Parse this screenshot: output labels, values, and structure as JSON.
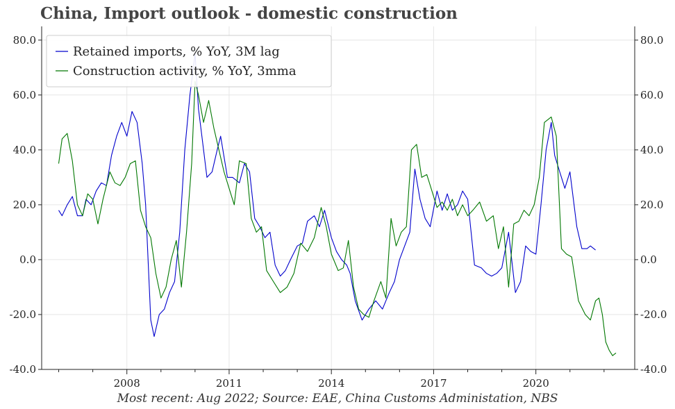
{
  "title": "China, Import outlook - domestic construction",
  "footer": "Most recent: Aug 2022; Source: EAE, China Customs Administation, NBS",
  "colors": {
    "series1": "#0000cc",
    "series2": "#007700",
    "grid": "#e6e6e6",
    "axis": "#222222"
  },
  "chart_data": {
    "type": "line",
    "title": "China, Import outlook - domestic construction",
    "ylim": [
      -40,
      85
    ],
    "xlim": [
      2005.5,
      2022.9
    ],
    "grid": true,
    "legend": "top-left",
    "x_ticks": [
      2008,
      2011,
      2014,
      2017,
      2020
    ],
    "x_tick_labels": [
      "2008",
      "2011",
      "2014",
      "2017",
      "2020"
    ],
    "y_ticks": [
      -40,
      -20,
      0,
      20,
      40,
      60,
      80
    ],
    "y_tick_labels": [
      "-40.0",
      "-20.0",
      "0.0",
      "20.0",
      "40.0",
      "60.0",
      "80.0"
    ],
    "series": [
      {
        "name": "Retained imports, % YoY, 3M lag",
        "color": "#0000cc",
        "x": [
          2006.0,
          2006.1,
          2006.25,
          2006.4,
          2006.55,
          2006.7,
          2006.8,
          2006.95,
          2007.1,
          2007.25,
          2007.4,
          2007.55,
          2007.7,
          2007.85,
          2008.0,
          2008.15,
          2008.3,
          2008.45,
          2008.55,
          2008.7,
          2008.8,
          2008.95,
          2009.1,
          2009.25,
          2009.4,
          2009.55,
          2009.7,
          2009.85,
          2010.0,
          2010.1,
          2010.2,
          2010.35,
          2010.5,
          2010.65,
          2010.75,
          2010.95,
          2011.1,
          2011.3,
          2011.45,
          2011.6,
          2011.75,
          2011.9,
          2012.05,
          2012.2,
          2012.35,
          2012.5,
          2012.65,
          2012.8,
          2013.0,
          2013.15,
          2013.3,
          2013.5,
          2013.65,
          2013.8,
          2014.0,
          2014.15,
          2014.3,
          2014.45,
          2014.55,
          2014.7,
          2014.9,
          2015.1,
          2015.3,
          2015.5,
          2015.7,
          2015.85,
          2016.0,
          2016.15,
          2016.3,
          2016.45,
          2016.6,
          2016.75,
          2016.9,
          2017.1,
          2017.25,
          2017.4,
          2017.55,
          2017.7,
          2017.85,
          2018.0,
          2018.2,
          2018.4,
          2018.55,
          2018.7,
          2018.85,
          2019.0,
          2019.2,
          2019.4,
          2019.55,
          2019.7,
          2019.85,
          2020.0,
          2020.15,
          2020.3,
          2020.45,
          2020.55,
          2020.7,
          2020.85,
          2021.0,
          2021.2,
          2021.35,
          2021.5,
          2021.6,
          2021.75
        ],
        "y": [
          18,
          16,
          20,
          23,
          16,
          16,
          22,
          20,
          25,
          28,
          27,
          38,
          45,
          50,
          45,
          54,
          50,
          35,
          20,
          -22,
          -28,
          -20,
          -18,
          -12,
          -8,
          10,
          40,
          60,
          75,
          55,
          45,
          30,
          32,
          40,
          45,
          30,
          30,
          28,
          35,
          32,
          15,
          12,
          8,
          10,
          -2,
          -6,
          -4,
          0,
          5,
          6,
          14,
          16,
          12,
          18,
          8,
          3,
          0,
          -2,
          -5,
          -15,
          -22,
          -18,
          -15,
          -18,
          -12,
          -8,
          0,
          5,
          10,
          33,
          22,
          15,
          12,
          25,
          18,
          24,
          18,
          20,
          25,
          22,
          -2,
          -3,
          -5,
          -6,
          -5,
          -3,
          10,
          -12,
          -8,
          5,
          3,
          2,
          20,
          40,
          50,
          38,
          32,
          26,
          32,
          12,
          4,
          4,
          5,
          3.5
        ]
      },
      {
        "name": "Construction activity, % YoY, 3mma",
        "color": "#007700",
        "x": [
          2006.0,
          2006.1,
          2006.25,
          2006.4,
          2006.55,
          2006.7,
          2006.85,
          2007.0,
          2007.15,
          2007.3,
          2007.5,
          2007.65,
          2007.8,
          2007.95,
          2008.1,
          2008.25,
          2008.4,
          2008.55,
          2008.7,
          2008.85,
          2009.0,
          2009.15,
          2009.3,
          2009.45,
          2009.6,
          2009.75,
          2009.9,
          2010.0,
          2010.1,
          2010.25,
          2010.4,
          2010.55,
          2010.7,
          2010.85,
          2011.0,
          2011.15,
          2011.3,
          2011.5,
          2011.65,
          2011.8,
          2011.95,
          2012.1,
          2012.3,
          2012.5,
          2012.7,
          2012.9,
          2013.1,
          2013.3,
          2013.5,
          2013.7,
          2013.85,
          2014.0,
          2014.2,
          2014.35,
          2014.5,
          2014.65,
          2014.8,
          2014.95,
          2015.1,
          2015.25,
          2015.45,
          2015.6,
          2015.75,
          2015.9,
          2016.05,
          2016.2,
          2016.35,
          2016.5,
          2016.65,
          2016.8,
          2016.95,
          2017.1,
          2017.25,
          2017.4,
          2017.55,
          2017.7,
          2017.85,
          2018.0,
          2018.15,
          2018.35,
          2018.55,
          2018.75,
          2018.9,
          2019.05,
          2019.2,
          2019.35,
          2019.5,
          2019.65,
          2019.8,
          2019.95,
          2020.1,
          2020.25,
          2020.45,
          2020.6,
          2020.75,
          2020.9,
          2021.05,
          2021.25,
          2021.45,
          2021.6,
          2021.75,
          2021.85,
          2021.95,
          2022.05,
          2022.15,
          2022.25,
          2022.35
        ],
        "y": [
          35,
          44,
          46,
          36,
          20,
          16,
          24,
          22,
          13,
          22,
          32,
          28,
          27,
          30,
          35,
          36,
          18,
          12,
          8,
          -5,
          -14,
          -10,
          0,
          7,
          -10,
          10,
          35,
          65,
          60,
          50,
          58,
          48,
          40,
          32,
          26,
          20,
          36,
          35,
          15,
          10,
          12,
          -4,
          -8,
          -12,
          -10,
          -5,
          6,
          3,
          8,
          19,
          12,
          2,
          -4,
          -3,
          7,
          -10,
          -18,
          -20,
          -21,
          -15,
          -8,
          -14,
          15,
          5,
          10,
          12,
          40,
          42,
          30,
          31,
          25,
          19,
          21,
          18,
          22,
          16,
          20,
          16,
          18,
          21,
          14,
          16,
          4,
          12,
          -10,
          13,
          14,
          18,
          16,
          20,
          30,
          50,
          52,
          45,
          4,
          2,
          1,
          -15,
          -20,
          -22,
          -15,
          -14,
          -20,
          -30,
          -33,
          -35,
          -34
        ]
      }
    ]
  }
}
